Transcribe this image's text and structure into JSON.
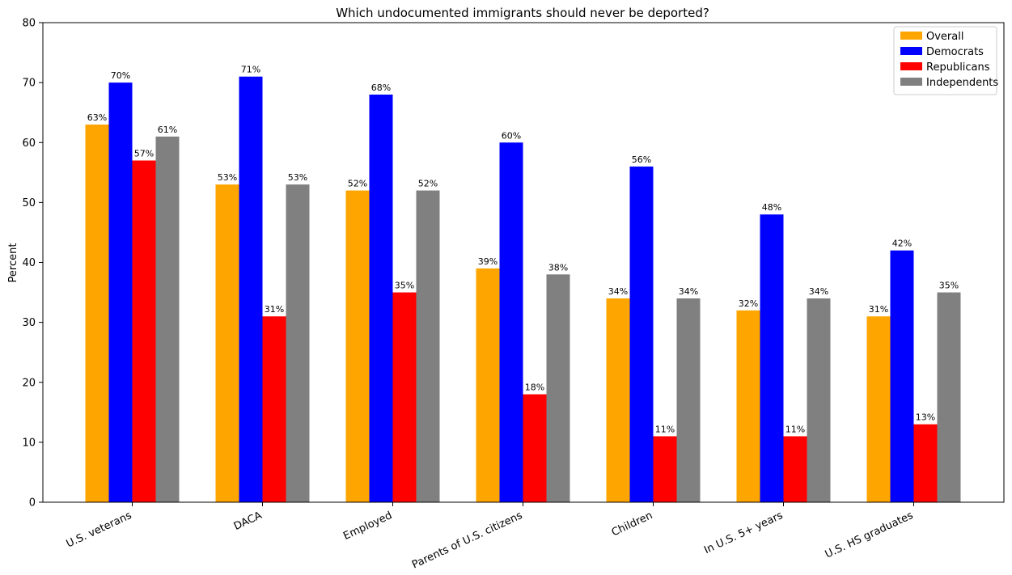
{
  "chart_data": {
    "type": "bar",
    "title": "Which undocumented immigrants should never be deported?",
    "xlabel": "",
    "ylabel": "Percent",
    "ylim": [
      0,
      80
    ],
    "yticks": [
      0,
      10,
      20,
      30,
      40,
      50,
      60,
      70,
      80
    ],
    "grid": false,
    "legend_position": "top-right",
    "categories": [
      "U.S. veterans",
      "DACA",
      "Employed",
      "Parents of U.S. citizens",
      "Children",
      "In U.S. 5+ years",
      "U.S. HS graduates"
    ],
    "series": [
      {
        "name": "Overall",
        "color": "#FFA500",
        "values": [
          63,
          53,
          52,
          39,
          34,
          32,
          31
        ],
        "labels": [
          "63%",
          "53%",
          "52%",
          "39%",
          "34%",
          "32%",
          "31%"
        ]
      },
      {
        "name": "Democrats",
        "color": "#0000FF",
        "values": [
          70,
          71,
          68,
          60,
          56,
          48,
          42
        ],
        "labels": [
          "70%",
          "71%",
          "68%",
          "60%",
          "56%",
          "48%",
          "42%"
        ]
      },
      {
        "name": "Republicans",
        "color": "#FF0000",
        "values": [
          57,
          31,
          35,
          18,
          11,
          11,
          13
        ],
        "labels": [
          "57%",
          "31%",
          "35%",
          "18%",
          "11%",
          "11%",
          "13%"
        ]
      },
      {
        "name": "Independents",
        "color": "#808080",
        "values": [
          61,
          53,
          52,
          38,
          34,
          34,
          35
        ],
        "labels": [
          "61%",
          "53%",
          "52%",
          "38%",
          "34%",
          "34%",
          "35%"
        ]
      }
    ]
  }
}
